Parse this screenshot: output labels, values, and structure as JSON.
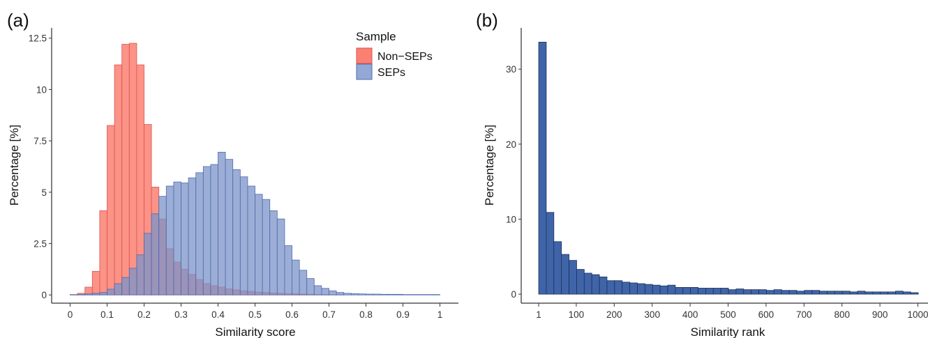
{
  "chart_data": [
    {
      "panel_label": "(a)",
      "type": "bar",
      "xlabel": "Similarity score",
      "ylabel": "Percentage [%]",
      "xlim": [
        -0.05,
        1.05
      ],
      "ylim": [
        -0.4,
        13.0
      ],
      "xticks": [
        0,
        0.1,
        0.2,
        0.3,
        0.4,
        0.5,
        0.6,
        0.7,
        0.8,
        0.9,
        1
      ],
      "xtick_labels": [
        "0",
        "0.1",
        "0.2",
        "0.3",
        "0.4",
        "0.5",
        "0.6",
        "0.7",
        "0.8",
        "0.9",
        "1"
      ],
      "yticks": [
        0,
        2.5,
        5,
        7.5,
        10,
        12.5
      ],
      "ytick_labels": [
        "0",
        "2.5",
        "5",
        "7.5",
        "10",
        "12.5"
      ],
      "bin_width": 0.02,
      "legend": {
        "title": "Sample",
        "position": "top-right"
      },
      "series": [
        {
          "name": "Non−SEPs",
          "color": "#FA8072",
          "edge": "#E05050",
          "bin_starts": [
            0.0,
            0.02,
            0.04,
            0.06,
            0.08,
            0.1,
            0.12,
            0.14,
            0.16,
            0.18,
            0.2,
            0.22,
            0.24,
            0.26,
            0.28,
            0.3,
            0.32,
            0.34,
            0.36,
            0.38,
            0.4,
            0.42,
            0.44,
            0.46,
            0.48,
            0.5,
            0.52,
            0.54,
            0.56,
            0.58,
            0.6,
            0.62,
            0.64,
            0.66,
            0.68,
            0.7,
            0.72
          ],
          "values": [
            0.02,
            0.08,
            0.38,
            1.15,
            4.1,
            8.25,
            11.2,
            12.2,
            12.25,
            11.2,
            8.3,
            5.25,
            3.7,
            2.25,
            1.6,
            1.25,
            1.0,
            0.75,
            0.55,
            0.45,
            0.38,
            0.3,
            0.25,
            0.2,
            0.17,
            0.14,
            0.12,
            0.1,
            0.08,
            0.06,
            0.05,
            0.04,
            0.03,
            0.02,
            0.02,
            0.01,
            0.01
          ]
        },
        {
          "name": "SEPs",
          "color": "#7B93C8",
          "edge": "#4F6BB0",
          "bin_starts": [
            0.0,
            0.02,
            0.04,
            0.06,
            0.08,
            0.1,
            0.12,
            0.14,
            0.16,
            0.18,
            0.2,
            0.22,
            0.24,
            0.26,
            0.28,
            0.3,
            0.32,
            0.34,
            0.36,
            0.38,
            0.4,
            0.42,
            0.44,
            0.46,
            0.48,
            0.5,
            0.52,
            0.54,
            0.56,
            0.58,
            0.6,
            0.62,
            0.64,
            0.66,
            0.68,
            0.7,
            0.72,
            0.74,
            0.76,
            0.78,
            0.8,
            0.82,
            0.84,
            0.86,
            0.88,
            0.9,
            0.92,
            0.94,
            0.96,
            0.98
          ],
          "values": [
            0.01,
            0.02,
            0.05,
            0.08,
            0.12,
            0.28,
            0.55,
            0.85,
            1.3,
            1.95,
            3.0,
            3.95,
            4.8,
            5.3,
            5.5,
            5.45,
            5.7,
            5.95,
            6.25,
            6.35,
            6.95,
            6.6,
            6.1,
            5.75,
            5.3,
            4.9,
            4.65,
            4.1,
            3.7,
            2.4,
            1.7,
            1.2,
            0.8,
            0.45,
            0.32,
            0.2,
            0.12,
            0.08,
            0.06,
            0.05,
            0.04,
            0.04,
            0.03,
            0.03,
            0.03,
            0.02,
            0.02,
            0.02,
            0.02,
            0.02
          ]
        }
      ]
    },
    {
      "panel_label": "(b)",
      "type": "bar",
      "xlabel": "Similarity rank",
      "ylabel": "Percentage [%]",
      "xlim": [
        -45,
        1045
      ],
      "ylim": [
        -1.2,
        35.5
      ],
      "xticks": [
        1,
        100,
        200,
        300,
        400,
        500,
        600,
        700,
        800,
        900,
        1000
      ],
      "xtick_labels": [
        "1",
        "100",
        "200",
        "300",
        "400",
        "500",
        "600",
        "700",
        "800",
        "900",
        "1000"
      ],
      "yticks": [
        0,
        10,
        20,
        30
      ],
      "ytick_labels": [
        "0",
        "10",
        "20",
        "30"
      ],
      "bin_width": 20,
      "color": "#3F65A8",
      "edge": "#1F2F5A",
      "bin_starts": [
        1,
        21,
        41,
        61,
        81,
        101,
        121,
        141,
        161,
        181,
        201,
        221,
        241,
        261,
        281,
        301,
        321,
        341,
        361,
        381,
        401,
        421,
        441,
        461,
        481,
        501,
        521,
        541,
        561,
        581,
        601,
        621,
        641,
        661,
        681,
        701,
        721,
        741,
        761,
        781,
        801,
        821,
        841,
        861,
        881,
        901,
        921,
        941,
        961,
        981
      ],
      "values": [
        33.6,
        10.9,
        7.0,
        5.3,
        4.5,
        3.3,
        2.8,
        2.6,
        2.3,
        1.8,
        1.8,
        1.6,
        1.5,
        1.4,
        1.3,
        1.2,
        1.1,
        1.2,
        0.9,
        0.9,
        0.9,
        0.8,
        0.8,
        0.8,
        0.8,
        0.6,
        0.7,
        0.6,
        0.6,
        0.6,
        0.5,
        0.6,
        0.5,
        0.5,
        0.4,
        0.5,
        0.5,
        0.4,
        0.4,
        0.4,
        0.4,
        0.3,
        0.4,
        0.3,
        0.3,
        0.3,
        0.3,
        0.4,
        0.3,
        0.2
      ]
    }
  ]
}
